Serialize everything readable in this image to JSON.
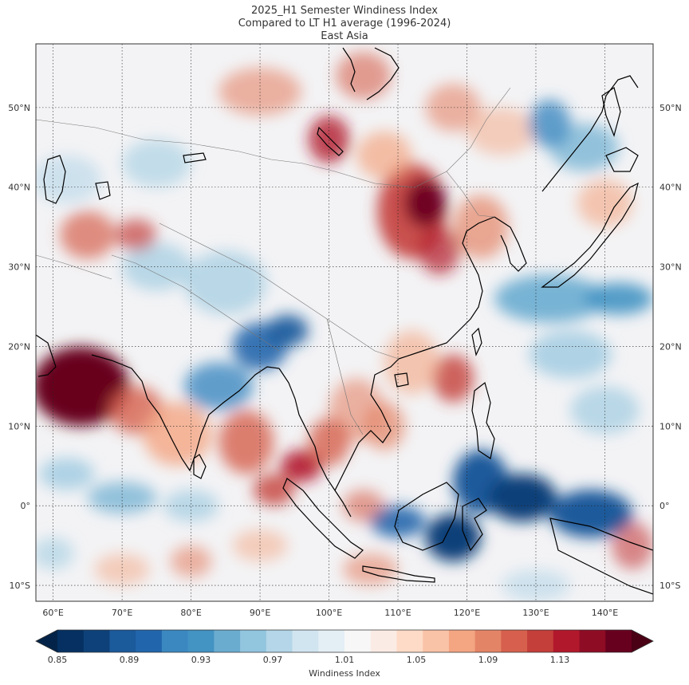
{
  "titles": {
    "line1": "2025_H1 Semester Windiness Index",
    "line2": "Compared to LT H1 average (1996-2024)",
    "line3": "East Asia"
  },
  "map": {
    "lon_min": 57.5,
    "lon_max": 147,
    "lat_min": -12,
    "lat_max": 58,
    "lon_ticks": [
      "60°E",
      "70°E",
      "80°E",
      "90°E",
      "100°E",
      "110°E",
      "120°E",
      "130°E",
      "140°E"
    ],
    "lon_tick_values": [
      60,
      70,
      80,
      90,
      100,
      110,
      120,
      130,
      140
    ],
    "lat_ticks": [
      "10°S",
      "0°",
      "10°N",
      "20°N",
      "30°N",
      "40°N",
      "50°N"
    ],
    "lat_tick_values": [
      -10,
      0,
      10,
      20,
      30,
      40,
      50
    ],
    "field_description_colors": {
      "low": "#053061",
      "mid": "#f7f7f7",
      "high": "#67001f"
    }
  },
  "colorbar": {
    "label": "Windiness Index",
    "vmin": 0.85,
    "vmax": 1.17,
    "ticks": [
      "0.85",
      "0.89",
      "0.93",
      "0.97",
      "1.01",
      "1.05",
      "1.09",
      "1.13"
    ],
    "tick_values": [
      0.85,
      0.89,
      0.93,
      0.97,
      1.01,
      1.05,
      1.09,
      1.13
    ],
    "colors": [
      "#053061",
      "#0e4179",
      "#1b5a9b",
      "#2166ac",
      "#3b88c1",
      "#4393c3",
      "#6aacd0",
      "#92c5de",
      "#b4d6e8",
      "#d1e5f0",
      "#e4eef5",
      "#f7f7f7",
      "#faebe4",
      "#fddbc7",
      "#f9c3a8",
      "#f4a582",
      "#e48467",
      "#d6604d",
      "#c43e3a",
      "#b2182b",
      "#8f0c25",
      "#67001f"
    ]
  }
}
